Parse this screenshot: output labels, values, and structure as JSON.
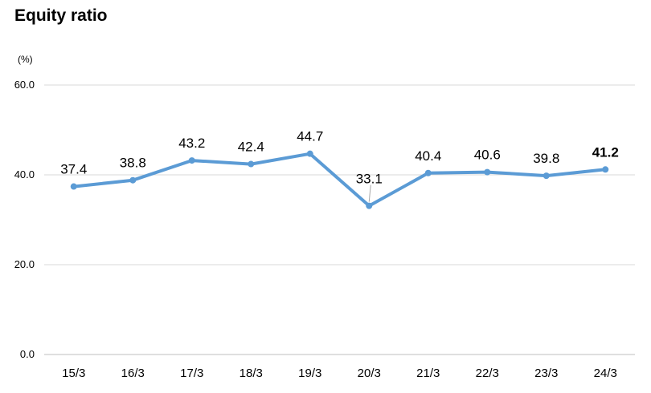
{
  "chart_data": {
    "type": "line",
    "title": "Equity ratio",
    "unit": "(%)",
    "categories": [
      "15/3",
      "16/3",
      "17/3",
      "18/3",
      "19/3",
      "20/3",
      "21/3",
      "22/3",
      "23/3",
      "24/3"
    ],
    "series": [
      {
        "values": [
          37.4,
          38.8,
          43.2,
          42.4,
          44.7,
          33.1,
          40.4,
          40.6,
          39.8,
          41.2
        ]
      }
    ],
    "value_labels": [
      "37.4",
      "38.8",
      "43.2",
      "42.4",
      "44.7",
      "33.1",
      "40.4",
      "40.6",
      "39.8",
      "41.2"
    ],
    "y_ticks": [
      "0.0",
      "20.0",
      "40.0",
      "60.0"
    ],
    "y_tick_values": [
      0,
      20,
      40,
      60
    ],
    "ylim": [
      0,
      60
    ],
    "grid": true,
    "legend": "none",
    "highlight_last_label": true,
    "colors": {
      "line": "#5B9BD5",
      "grid": "#D9D9D9",
      "axis": "#BFBFBF"
    }
  }
}
